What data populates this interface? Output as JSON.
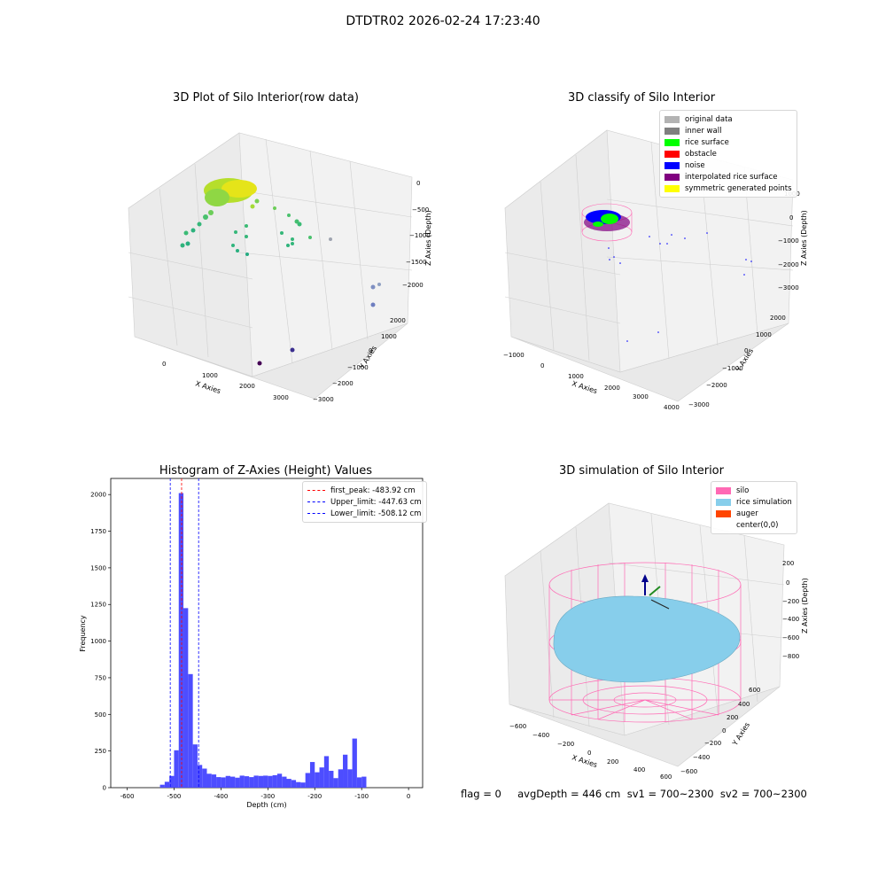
{
  "suptitle": "DTDTR02 2026-02-24 17:23:40",
  "footer": "flag = 0     avgDepth = 446 cm  sv1 = 700~2300  sv2 = 700~2300",
  "panels": {
    "raw": {
      "title": "3D Plot of Silo Interior(row data)",
      "xlabel": "X Axies",
      "ylabel": "Y Axies",
      "zlabel": "Z Axies (Depth)",
      "xticks": [
        "0",
        "1000",
        "2000",
        "3000"
      ],
      "yticks": [
        "2000",
        "1000",
        "0",
        "−1000",
        "−2000",
        "−3000"
      ],
      "zticks": [
        "0",
        "−500",
        "−1000",
        "−1500",
        "−2000"
      ]
    },
    "classify": {
      "title": "3D classify of Silo Interior",
      "xlabel": "X Axies",
      "ylabel": "Y Axies",
      "zlabel": "Z Axies (Depth)",
      "xticks": [
        "−1000",
        "0",
        "1000",
        "2000",
        "3000",
        "4000"
      ],
      "yticks": [
        "2000",
        "1000",
        "0",
        "−1000",
        "−2000",
        "−3000"
      ],
      "zticks": [
        "1000",
        "0",
        "−1000",
        "−2000",
        "−3000"
      ],
      "legend": [
        {
          "label": "original data",
          "color": "#b3b3b3"
        },
        {
          "label": "inner wall",
          "color": "#808080"
        },
        {
          "label": "rice surface",
          "color": "#00ff00"
        },
        {
          "label": "obstacle",
          "color": "#ff0000"
        },
        {
          "label": "noise",
          "color": "#0000ff"
        },
        {
          "label": "interpolated rice surface",
          "color": "#800080"
        },
        {
          "label": "symmetric generated points",
          "color": "#ffff00"
        }
      ]
    },
    "simulation": {
      "title": "3D simulation of Silo Interior",
      "xlabel": "X Axies",
      "ylabel": "Y Axies",
      "zlabel": "Z Axies (Depth)",
      "xticks": [
        "−600",
        "−400",
        "−200",
        "0",
        "200",
        "400",
        "600"
      ],
      "yticks": [
        "600",
        "400",
        "200",
        "0",
        "−200",
        "−400",
        "−600"
      ],
      "zticks": [
        "200",
        "0",
        "−200",
        "−400",
        "−600",
        "−800"
      ],
      "legend": [
        {
          "label": "silo",
          "color": "#ff69b4"
        },
        {
          "label": "rice simulation",
          "color": "#87ceeb"
        },
        {
          "label": "auger",
          "color": "#ff4500"
        },
        {
          "label": "center(0,0)",
          "color": ""
        }
      ]
    }
  },
  "chart_data": {
    "type": "bar",
    "title": "Histogram of Z-Axies (Height) Values",
    "xlabel": "Depth (cm)",
    "ylabel": "Frequency",
    "xlim": [
      -635,
      30
    ],
    "ylim": [
      0,
      2110
    ],
    "xticks": [
      -600,
      -500,
      -400,
      -300,
      -200,
      -100,
      0
    ],
    "yticks": [
      0,
      250,
      500,
      750,
      1000,
      1250,
      1500,
      1750,
      2000
    ],
    "bar_color": "#4d4dff",
    "bin_width": 10,
    "bins": [
      {
        "x": -530,
        "v": 20
      },
      {
        "x": -520,
        "v": 40
      },
      {
        "x": -510,
        "v": 80
      },
      {
        "x": -500,
        "v": 255
      },
      {
        "x": -490,
        "v": 2010
      },
      {
        "x": -480,
        "v": 1225
      },
      {
        "x": -470,
        "v": 775
      },
      {
        "x": -460,
        "v": 295
      },
      {
        "x": -450,
        "v": 155
      },
      {
        "x": -440,
        "v": 130
      },
      {
        "x": -430,
        "v": 95
      },
      {
        "x": -420,
        "v": 90
      },
      {
        "x": -410,
        "v": 72
      },
      {
        "x": -400,
        "v": 70
      },
      {
        "x": -390,
        "v": 80
      },
      {
        "x": -380,
        "v": 75
      },
      {
        "x": -370,
        "v": 68
      },
      {
        "x": -360,
        "v": 82
      },
      {
        "x": -350,
        "v": 78
      },
      {
        "x": -340,
        "v": 72
      },
      {
        "x": -330,
        "v": 82
      },
      {
        "x": -320,
        "v": 80
      },
      {
        "x": -310,
        "v": 82
      },
      {
        "x": -300,
        "v": 80
      },
      {
        "x": -290,
        "v": 85
      },
      {
        "x": -280,
        "v": 95
      },
      {
        "x": -270,
        "v": 75
      },
      {
        "x": -260,
        "v": 60
      },
      {
        "x": -250,
        "v": 52
      },
      {
        "x": -240,
        "v": 38
      },
      {
        "x": -230,
        "v": 35
      },
      {
        "x": -220,
        "v": 100
      },
      {
        "x": -210,
        "v": 175
      },
      {
        "x": -200,
        "v": 105
      },
      {
        "x": -190,
        "v": 138
      },
      {
        "x": -180,
        "v": 215
      },
      {
        "x": -170,
        "v": 115
      },
      {
        "x": -160,
        "v": 65
      },
      {
        "x": -150,
        "v": 125
      },
      {
        "x": -140,
        "v": 225
      },
      {
        "x": -130,
        "v": 125
      },
      {
        "x": -120,
        "v": 335
      },
      {
        "x": -110,
        "v": 70
      },
      {
        "x": -100,
        "v": 75
      }
    ],
    "lines": [
      {
        "label": "first_peak: -483.92 cm",
        "x": -483.92,
        "color": "#ff0000"
      },
      {
        "label": "Upper_limit: -447.63 cm",
        "x": -447.63,
        "color": "#0000ff"
      },
      {
        "label": "Lower_limit: -508.12 cm",
        "x": -508.12,
        "color": "#0000ff"
      }
    ]
  }
}
